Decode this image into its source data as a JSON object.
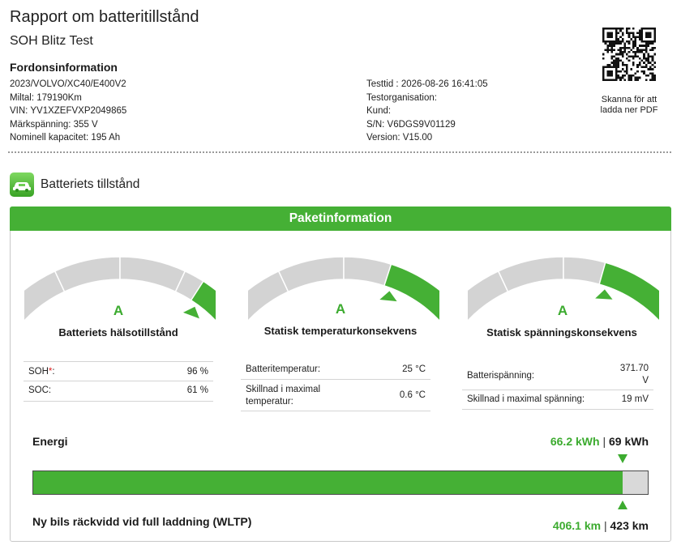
{
  "header": {
    "title": "Rapport om batteritillstånd",
    "subtitle": "SOH Blitz Test",
    "vehicle_heading": "Fordonsinformation",
    "vehicle_lines": [
      "2023/VOLVO/XC40/E400V2",
      "Miltal: 179190Km",
      "VIN: YV1XZEFVXP2049865",
      "Märkspänning: 355 V",
      "Nominell kapacitet: 195 Ah"
    ],
    "test_lines": [
      "Testtid : 2026-08-26 16:41:05",
      "Testorganisation:",
      "Kund:",
      "S/N: V6DGS9V01129",
      "Version: V15.00"
    ],
    "qr_caption": "Skanna för att ladda ner PDF"
  },
  "section": {
    "title": "Batteriets tillstånd",
    "panel_title": "Paketinformation"
  },
  "gauges": [
    {
      "grade": "A",
      "label": "Batteriets hälsotillstånd",
      "level": 0.96,
      "rows": [
        {
          "key": "SOH",
          "mark": "*",
          "suffix": ":",
          "value": "96 %"
        },
        {
          "key": "SOC:",
          "value": "61 %"
        }
      ]
    },
    {
      "grade": "A",
      "label": "Statisk temperaturkonsekvens",
      "level": 0.82,
      "rows": [
        {
          "key": "Batteritemperatur:",
          "value": "25 °C"
        },
        {
          "key_lines": [
            "Skillnad i maximal",
            "temperatur:"
          ],
          "value": "0.6 °C"
        }
      ]
    },
    {
      "grade": "A",
      "label": "Statisk spänningskonsekvens",
      "level": 0.8,
      "rows": [
        {
          "key": "Batterispänning:",
          "value_lines": [
            "371.70",
            "V"
          ]
        },
        {
          "key": "Skillnad i maximal spänning:",
          "value": "19 mV"
        }
      ]
    }
  ],
  "energy": {
    "title": "Energi",
    "current": "66.2 kWh",
    "separator": "|",
    "total": "69 kWh",
    "fraction": 0.959
  },
  "range": {
    "title": "Ny bils räckvidd vid full laddning (WLTP)",
    "current": "406.1 km",
    "separator": "|",
    "total": "423 km"
  },
  "colors": {
    "accent": "#45b035",
    "grade_text": "#3cab2f",
    "gauge_track": "#d3d3d3",
    "gauge_segment_gap": "#ffffff",
    "bar_track": "#d9d9d9"
  }
}
